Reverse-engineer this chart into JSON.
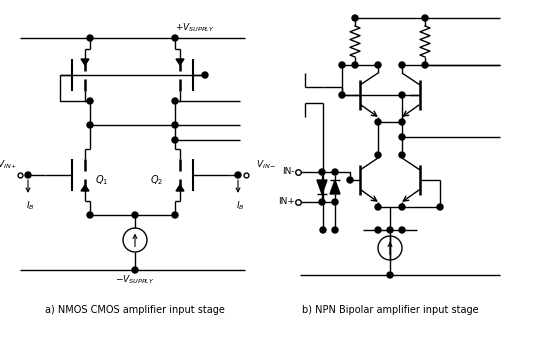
{
  "title_a": "a) NMOS CMOS amplifier input stage",
  "title_b": "b) NPN Bipolar amplifier input stage",
  "fig_width": 5.5,
  "fig_height": 3.54,
  "bg_color": "#ffffff",
  "line_color": "#000000",
  "line_width": 1.0,
  "label_fontsize": 7.5
}
